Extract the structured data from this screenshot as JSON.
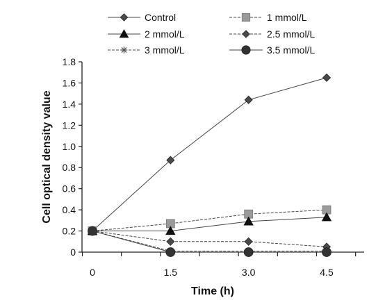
{
  "chart_data": {
    "type": "line",
    "xlabel": "Time (h)",
    "ylabel": "Cell optical density value",
    "x": [
      0,
      1.5,
      3.0,
      4.5
    ],
    "x_tick_labels": [
      "0",
      "1.5",
      "3.0",
      "4.5"
    ],
    "xlim": [
      -0.1,
      5.2
    ],
    "y_ticks": [
      0,
      0.2,
      0.4,
      0.6,
      0.8,
      1.0,
      1.2,
      1.4,
      1.6,
      1.8
    ],
    "y_tick_labels": [
      "0",
      "0.2",
      "0.4",
      "0.6",
      "0.8",
      "1.0",
      "1.2",
      "1.4",
      "1.6",
      "1.8"
    ],
    "ylim": [
      0,
      1.8
    ],
    "grid": false,
    "legend_position": "top",
    "series": [
      {
        "name": "Control",
        "marker": "diamond",
        "line": "solid",
        "values": [
          0.2,
          0.87,
          1.44,
          1.65
        ]
      },
      {
        "name": "1 mmol/L",
        "marker": "square",
        "line": "dashed",
        "values": [
          0.2,
          0.27,
          0.36,
          0.4
        ]
      },
      {
        "name": "2 mmol/L",
        "marker": "triangle",
        "line": "solid",
        "values": [
          0.2,
          0.2,
          0.29,
          0.33
        ]
      },
      {
        "name": "2.5 mmol/L",
        "marker": "diamond",
        "line": "dashed",
        "values": [
          0.2,
          0.1,
          0.1,
          0.05
        ]
      },
      {
        "name": "3 mmol/L",
        "marker": "asterisk",
        "line": "dashed",
        "values": [
          0.2,
          0.01,
          0.01,
          0.01
        ]
      },
      {
        "name": "3.5 mmol/L",
        "marker": "circle",
        "line": "solid",
        "values": [
          0.2,
          0.0,
          0.0,
          0.0
        ]
      }
    ]
  }
}
